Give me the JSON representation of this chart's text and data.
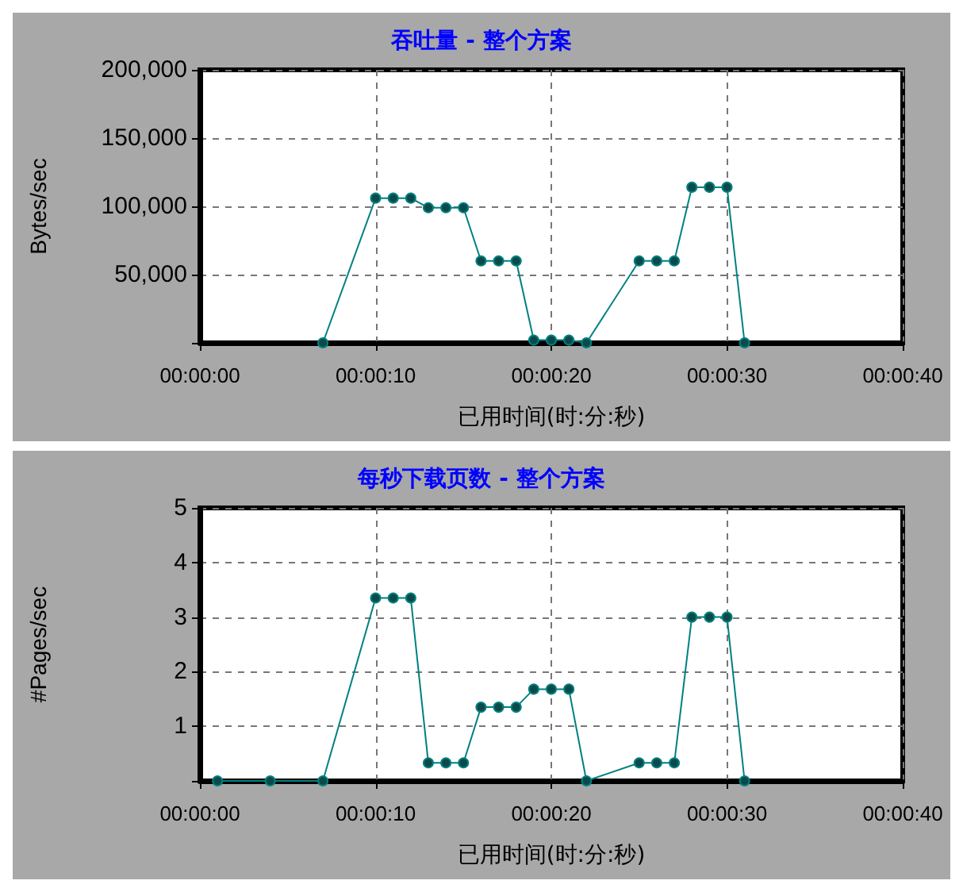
{
  "chart_data": [
    {
      "type": "line",
      "title": "吞吐量 - 整个方案",
      "xlabel": "已用时间(时:分:秒)",
      "ylabel": "Bytes/sec",
      "x": [
        7,
        10,
        11,
        12,
        13,
        14,
        15,
        16,
        17,
        18,
        19,
        20,
        21,
        22,
        25,
        26,
        27,
        28,
        29,
        30,
        31
      ],
      "series": [
        {
          "color": "#008080",
          "values": [
            0,
            106000,
            106000,
            106000,
            99000,
            99000,
            99000,
            60000,
            60000,
            60000,
            2000,
            2000,
            2000,
            0,
            60000,
            60000,
            60000,
            114000,
            114000,
            114000,
            0
          ]
        }
      ],
      "xlim": [
        0,
        40
      ],
      "xticks": [
        {
          "value": 0,
          "label": "00:00:00"
        },
        {
          "value": 10,
          "label": "00:00:10"
        },
        {
          "value": 20,
          "label": "00:00:20"
        },
        {
          "value": 30,
          "label": "00:00:30"
        },
        {
          "value": 40,
          "label": "00:00:40"
        }
      ],
      "ylim": [
        0,
        200000
      ],
      "yticks": [
        {
          "value": 0,
          "label": null
        },
        {
          "value": 50000,
          "label": "50,000"
        },
        {
          "value": 100000,
          "label": "100,000"
        },
        {
          "value": 150000,
          "label": "150,000"
        },
        {
          "value": 200000,
          "label": "200,000"
        }
      ],
      "grid": true,
      "marker": "circle",
      "line_style": "solid"
    },
    {
      "type": "line",
      "title": "每秒下载页数 - 整个方案",
      "xlabel": "已用时间(时:分:秒)",
      "ylabel": "#Pages/sec",
      "x": [
        1,
        4,
        7,
        10,
        11,
        12,
        13,
        14,
        15,
        16,
        17,
        18,
        19,
        20,
        21,
        22,
        25,
        26,
        27,
        28,
        29,
        30,
        31
      ],
      "series": [
        {
          "color": "#008080",
          "values": [
            0,
            0,
            0,
            3.35,
            3.35,
            3.35,
            0.33,
            0.33,
            0.33,
            1.35,
            1.35,
            1.35,
            1.68,
            1.68,
            1.68,
            0,
            0.33,
            0.33,
            0.33,
            3,
            3,
            3,
            0
          ]
        }
      ],
      "xlim": [
        0,
        40
      ],
      "xticks": [
        {
          "value": 0,
          "label": "00:00:00"
        },
        {
          "value": 10,
          "label": "00:00:10"
        },
        {
          "value": 20,
          "label": "00:00:20"
        },
        {
          "value": 30,
          "label": "00:00:30"
        },
        {
          "value": 40,
          "label": "00:00:40"
        }
      ],
      "ylim": [
        0,
        5
      ],
      "yticks": [
        {
          "value": 0,
          "label": null
        },
        1,
        2,
        3,
        4,
        5
      ],
      "grid": true,
      "marker": "circle",
      "line_style": "solid"
    }
  ]
}
